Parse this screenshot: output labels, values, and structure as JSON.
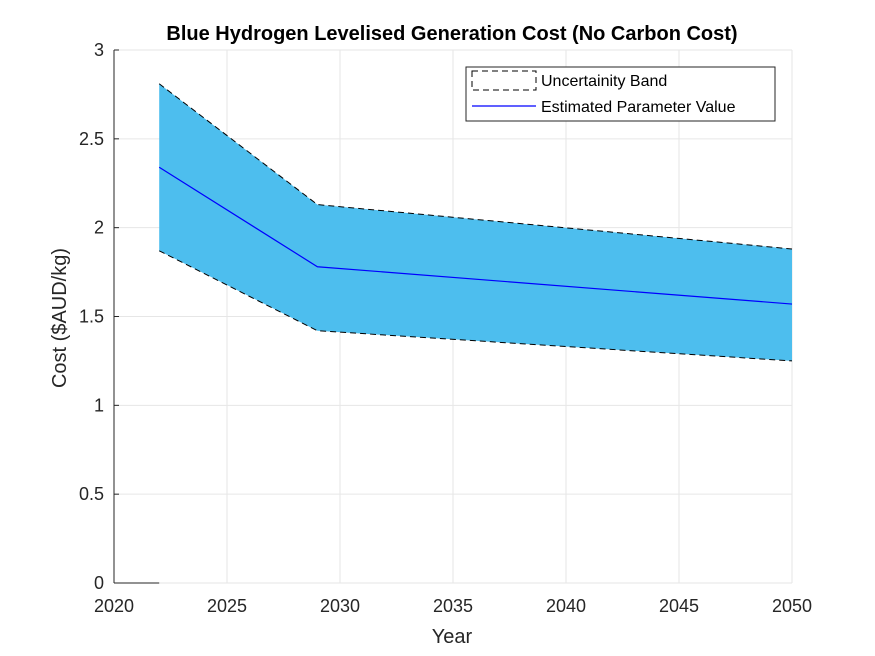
{
  "chart_data": {
    "type": "area",
    "title": "Blue Hydrogen Levelised Generation Cost (No Carbon Cost)",
    "xlabel": "Year",
    "ylabel": "Cost ($AUD/kg)",
    "xlim": [
      2020,
      2050
    ],
    "ylim": [
      0,
      3
    ],
    "xticks": [
      2020,
      2025,
      2030,
      2035,
      2040,
      2045,
      2050
    ],
    "yticks": [
      0,
      0.5,
      1,
      1.5,
      2,
      2.5,
      3
    ],
    "ytick_labels": [
      "0",
      "0.5",
      "1",
      "1.5",
      "2",
      "2.5",
      "3"
    ],
    "grid": true,
    "legend_position": "top-right",
    "x": [
      2022,
      2029,
      2050
    ],
    "series": [
      {
        "name": "Uncertainity Band",
        "kind": "band",
        "upper": [
          2.81,
          2.13,
          1.88
        ],
        "lower": [
          1.87,
          1.42,
          1.25
        ],
        "fill_color": "#4dbeee",
        "edge_color": "#000000",
        "edge_style": "dashed"
      },
      {
        "name": "Estimated Parameter Value",
        "kind": "line",
        "values": [
          2.34,
          1.78,
          1.57
        ],
        "color": "#0000ff"
      }
    ]
  }
}
